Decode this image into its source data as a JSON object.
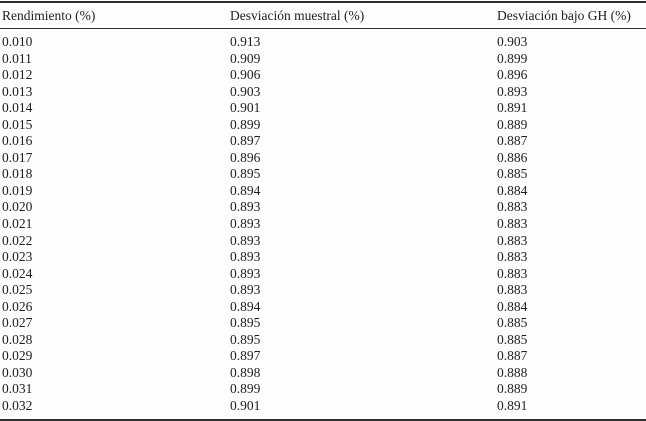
{
  "table": {
    "columns": [
      "Rendimiento (%)",
      "Desviación muestral (%)",
      "Desviación bajo GH (%)"
    ],
    "rows": [
      [
        "0.010",
        "0.913",
        "0.903"
      ],
      [
        "0.011",
        "0.909",
        "0.899"
      ],
      [
        "0.012",
        "0.906",
        "0.896"
      ],
      [
        "0.013",
        "0.903",
        "0.893"
      ],
      [
        "0.014",
        "0.901",
        "0.891"
      ],
      [
        "0.015",
        "0.899",
        "0.889"
      ],
      [
        "0.016",
        "0.897",
        "0.887"
      ],
      [
        "0.017",
        "0.896",
        "0.886"
      ],
      [
        "0.018",
        "0.895",
        "0.885"
      ],
      [
        "0.019",
        "0.894",
        "0.884"
      ],
      [
        "0.020",
        "0.893",
        "0.883"
      ],
      [
        "0.021",
        "0.893",
        "0.883"
      ],
      [
        "0.022",
        "0.893",
        "0.883"
      ],
      [
        "0.023",
        "0.893",
        "0.883"
      ],
      [
        "0.024",
        "0.893",
        "0.883"
      ],
      [
        "0.025",
        "0.893",
        "0.883"
      ],
      [
        "0.026",
        "0.894",
        "0.884"
      ],
      [
        "0.027",
        "0.895",
        "0.885"
      ],
      [
        "0.028",
        "0.895",
        "0.885"
      ],
      [
        "0.029",
        "0.897",
        "0.887"
      ],
      [
        "0.030",
        "0.898",
        "0.888"
      ],
      [
        "0.031",
        "0.899",
        "0.889"
      ],
      [
        "0.032",
        "0.901",
        "0.891"
      ]
    ]
  },
  "colors": {
    "text": "#1e1e1e",
    "rule": "#2e2e2e",
    "background": "#fdfdfd"
  }
}
